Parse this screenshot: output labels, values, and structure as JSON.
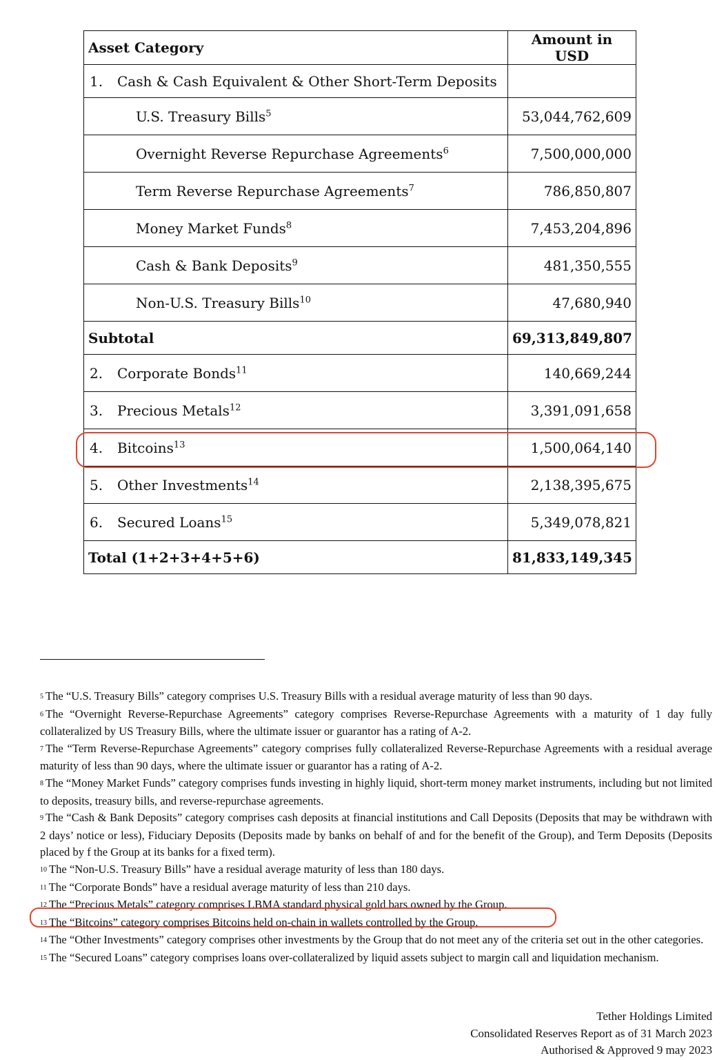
{
  "table": {
    "headers": {
      "category": "Asset Category",
      "amount": "Amount in USD"
    },
    "section1": {
      "num": "1.",
      "label": "Cash & Cash Equivalent & Other Short-Term Deposits"
    },
    "sub_items": [
      {
        "label": "U.S. Treasury Bills",
        "note": "5",
        "amount": "53,044,762,609"
      },
      {
        "label": "Overnight Reverse Repurchase Agreements",
        "note": "6",
        "amount": "7,500,000,000"
      },
      {
        "label": "Term Reverse Repurchase Agreements",
        "note": "7",
        "amount": "786,850,807"
      },
      {
        "label": "Money Market Funds",
        "note": "8",
        "amount": "7,453,204,896"
      },
      {
        "label": "Cash & Bank Deposits",
        "note": "9",
        "amount": "481,350,555"
      },
      {
        "label": "Non-U.S. Treasury Bills",
        "note": "10",
        "amount": "47,680,940"
      }
    ],
    "subtotal": {
      "label": "Subtotal",
      "amount": "69,313,849,807"
    },
    "items": [
      {
        "num": "2.",
        "label": "Corporate Bonds",
        "note": "11",
        "amount": "140,669,244"
      },
      {
        "num": "3.",
        "label": "Precious Metals",
        "note": "12",
        "amount": "3,391,091,658"
      },
      {
        "num": "4.",
        "label": "Bitcoins",
        "note": "13",
        "amount": "1,500,064,140",
        "highlighted": true
      },
      {
        "num": "5.",
        "label": "Other Investments",
        "note": "14",
        "amount": "2,138,395,675"
      },
      {
        "num": "6.",
        "label": "Secured Loans",
        "note": "15",
        "amount": "5,349,078,821"
      }
    ],
    "total": {
      "label": "Total (1+2+3+4+5+6)",
      "amount": "81,833,149,345"
    }
  },
  "footnotes": [
    {
      "n": "5",
      "text": "The “U.S. Treasury Bills” category comprises U.S. Treasury Bills with a residual average maturity of less than 90 days."
    },
    {
      "n": "6",
      "text": "The “Overnight Reverse-Repurchase Agreements” category comprises Reverse-Repurchase Agreements with a maturity of 1 day fully collateralized by US Treasury Bills, where the ultimate issuer or guarantor has a rating of A-2."
    },
    {
      "n": "7",
      "text": "The “Term Reverse-Repurchase Agreements” category comprises fully collateralized Reverse-Repurchase Agreements with a residual average maturity of less than 90 days, where the ultimate issuer or guarantor has a rating of A-2."
    },
    {
      "n": "8",
      "text": "The “Money Market Funds” category comprises funds investing in highly liquid, short-term money market instruments, including but not limited to deposits, treasury bills, and reverse-repurchase agreements."
    },
    {
      "n": "9",
      "text": "The “Cash & Bank Deposits” category comprises cash deposits at financial institutions and Call Deposits (Deposits that may be withdrawn with 2 days’ notice or less), Fiduciary Deposits (Deposits made by banks on behalf of and for the benefit of the Group), and Term Deposits (Deposits placed by f the Group at its banks for a fixed term)."
    },
    {
      "n": "10",
      "text": "The “Non-U.S. Treasury Bills” have a residual average maturity of less than 180 days."
    },
    {
      "n": "11",
      "text": "The “Corporate Bonds” have a residual average maturity of less than 210 days."
    },
    {
      "n": "12",
      "text": "The “Precious Metals” category comprises LBMA standard physical gold bars owned by the Group."
    },
    {
      "n": "13",
      "text": "The “Bitcoins” category comprises Bitcoins held on-chain in wallets controlled by the Group.",
      "highlighted": true
    },
    {
      "n": "14",
      "text": "The “Other Investments” category comprises other investments by the Group that do not meet any of the criteria set out in the other categories."
    },
    {
      "n": "15",
      "text": "The “Secured Loans” category comprises loans over-collateralized by liquid assets subject to margin call and liquidation mechanism."
    }
  ],
  "footer": {
    "company": "Tether Holdings Limited",
    "report": "Consolidated Reserves Report as of 31 March 2023",
    "approval": "Authorised & Approved 9 may 2023"
  },
  "colors": {
    "highlight": "#e0452b"
  }
}
